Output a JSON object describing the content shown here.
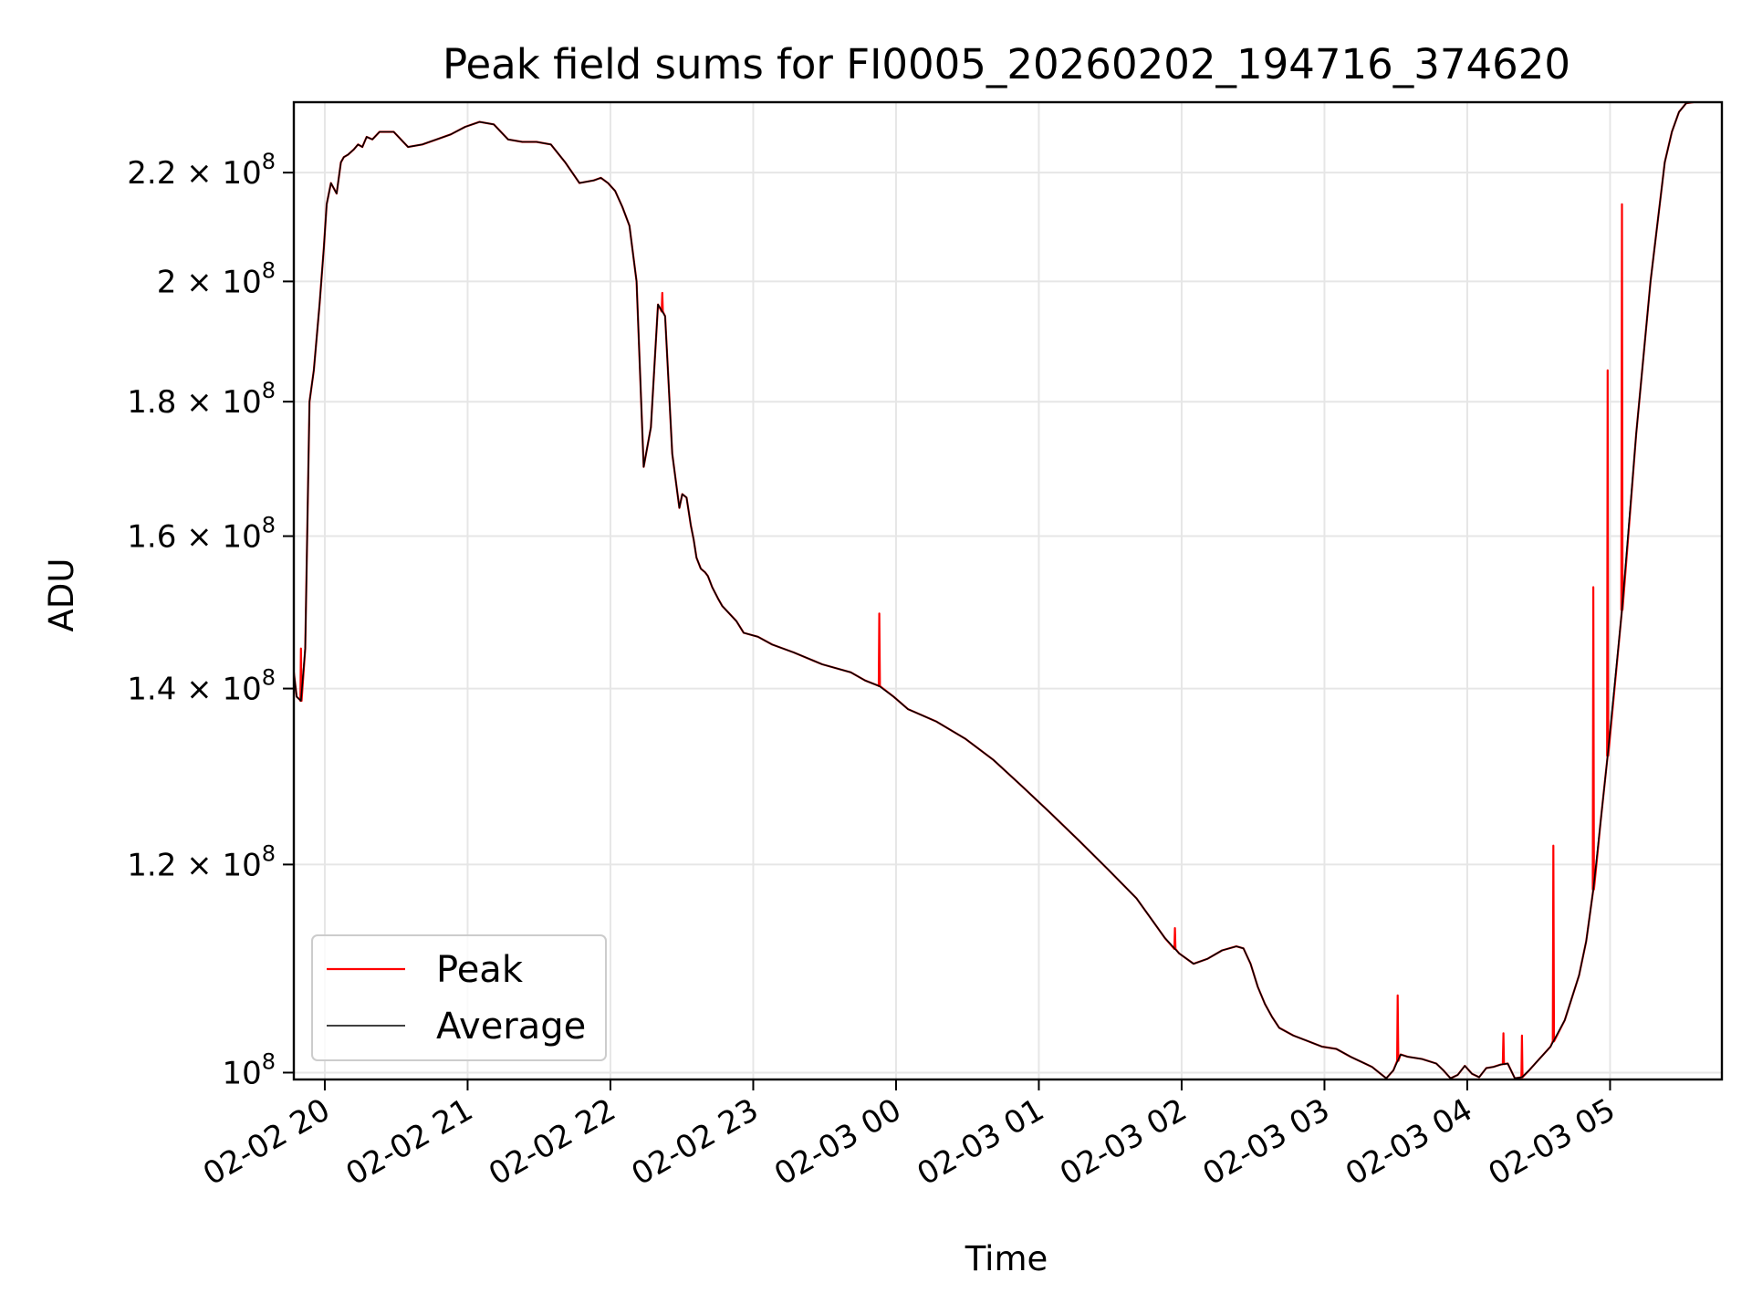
{
  "chart_data": {
    "type": "line",
    "title": "Peak field sums for FI0005_20260202_194716_374620",
    "xlabel": "Time",
    "ylabel": "ADU",
    "y_scale": "log",
    "ylim": [
      99400000,
      234000000
    ],
    "x_unit": "hours since 2026-02-02 19:47",
    "xlim": [
      0.0,
      10.0
    ],
    "grid": true,
    "legend_position": "lower-left",
    "x_ticks": [
      {
        "x": 0.217,
        "label": "02-02 20"
      },
      {
        "x": 1.217,
        "label": "02-02 21"
      },
      {
        "x": 2.217,
        "label": "02-02 22"
      },
      {
        "x": 3.217,
        "label": "02-02 23"
      },
      {
        "x": 4.217,
        "label": "02-03 00"
      },
      {
        "x": 5.217,
        "label": "02-03 01"
      },
      {
        "x": 6.217,
        "label": "02-03 02"
      },
      {
        "x": 7.217,
        "label": "02-03 03"
      },
      {
        "x": 8.217,
        "label": "02-03 04"
      },
      {
        "x": 9.217,
        "label": "02-03 05"
      }
    ],
    "y_ticks": [
      {
        "value": 100000000,
        "mantissa": "10",
        "exponent": "8"
      },
      {
        "value": 120000000,
        "mantissa": "1.2 × 10",
        "exponent": "8"
      },
      {
        "value": 140000000,
        "mantissa": "1.4 × 10",
        "exponent": "8"
      },
      {
        "value": 160000000,
        "mantissa": "1.6 × 10",
        "exponent": "8"
      },
      {
        "value": 180000000,
        "mantissa": "1.8 × 10",
        "exponent": "8"
      },
      {
        "value": 200000000,
        "mantissa": "2 × 10",
        "exponent": "8"
      },
      {
        "value": 220000000,
        "mantissa": "2.2 × 10",
        "exponent": "8"
      }
    ],
    "series": [
      {
        "name": "Average",
        "color": "#000000",
        "x": [
          0.0,
          0.02,
          0.05,
          0.08,
          0.11,
          0.14,
          0.18,
          0.21,
          0.23,
          0.26,
          0.3,
          0.33,
          0.35,
          0.38,
          0.42,
          0.45,
          0.48,
          0.51,
          0.55,
          0.6,
          0.7,
          0.8,
          0.9,
          1.0,
          1.1,
          1.2,
          1.3,
          1.4,
          1.5,
          1.6,
          1.7,
          1.8,
          1.9,
          2.0,
          2.1,
          2.15,
          2.2,
          2.25,
          2.3,
          2.35,
          2.4,
          2.45,
          2.5,
          2.55,
          2.6,
          2.65,
          2.7,
          2.72,
          2.75,
          2.78,
          2.8,
          2.82,
          2.85,
          2.88,
          2.9,
          2.93,
          2.97,
          3.0,
          3.05,
          3.1,
          3.15,
          3.25,
          3.35,
          3.5,
          3.7,
          3.9,
          4.0,
          4.1,
          4.2,
          4.3,
          4.5,
          4.7,
          4.9,
          5.1,
          5.3,
          5.5,
          5.7,
          5.9,
          6.0,
          6.1,
          6.2,
          6.3,
          6.4,
          6.5,
          6.6,
          6.65,
          6.7,
          6.75,
          6.8,
          6.85,
          6.9,
          7.0,
          7.1,
          7.2,
          7.3,
          7.4,
          7.5,
          7.55,
          7.6,
          7.65,
          7.7,
          7.75,
          7.8,
          7.9,
          8.0,
          8.05,
          8.1,
          8.15,
          8.2,
          8.25,
          8.3,
          8.35,
          8.4,
          8.45,
          8.5,
          8.55,
          8.6,
          8.65,
          8.7,
          8.8,
          8.9,
          9.0,
          9.05,
          9.1,
          9.15,
          9.2,
          9.3,
          9.4,
          9.5,
          9.6,
          9.65,
          9.7,
          9.75,
          9.8
        ],
        "y": [
          142000000,
          139000000,
          138500000,
          145000000,
          180000000,
          185000000,
          196000000,
          206000000,
          214000000,
          218000000,
          216000000,
          222000000,
          223000000,
          223500000,
          224500000,
          225500000,
          225000000,
          227000000,
          226500000,
          228000000,
          228000000,
          225000000,
          225500000,
          226500000,
          227500000,
          229000000,
          230000000,
          229500000,
          226500000,
          226000000,
          226000000,
          225500000,
          222000000,
          218000000,
          218500000,
          219000000,
          218000000,
          216500000,
          213500000,
          210000000,
          200000000,
          170000000,
          176000000,
          196000000,
          194000000,
          172000000,
          164000000,
          166000000,
          165500000,
          161500000,
          159500000,
          157000000,
          155500000,
          155000000,
          154500000,
          153000000,
          151500000,
          150500000,
          149500000,
          148500000,
          147000000,
          146500000,
          145500000,
          144500000,
          143000000,
          142000000,
          141000000,
          140300000,
          139000000,
          137500000,
          136000000,
          134000000,
          131500000,
          128500000,
          125500000,
          122500000,
          119500000,
          116500000,
          114500000,
          112500000,
          111000000,
          110000000,
          110500000,
          111300000,
          111700000,
          111500000,
          110000000,
          107800000,
          106200000,
          105000000,
          104000000,
          103300000,
          102800000,
          102300000,
          102100000,
          101400000,
          100800000,
          100500000,
          100000000,
          99500000,
          100200000,
          101600000,
          101400000,
          101200000,
          100800000,
          100200000,
          99500000,
          99800000,
          100600000,
          99900000,
          99600000,
          100400000,
          100500000,
          100700000,
          100800000,
          99500000,
          99600000,
          100200000,
          100900000,
          102300000,
          104700000,
          108900000,
          112200000,
          117400000,
          124500000,
          132000000,
          150000000,
          175000000,
          200000000,
          222000000,
          228000000,
          232000000,
          233800000,
          234000000
        ]
      },
      {
        "name": "Peak",
        "color": "#ff0000",
        "base": "Average",
        "spikes": [
          {
            "x": 0.05,
            "y": 145000000
          },
          {
            "x": 2.58,
            "y": 198000000
          },
          {
            "x": 4.1,
            "y": 149500000
          },
          {
            "x": 6.17,
            "y": 113500000
          },
          {
            "x": 7.73,
            "y": 107000000
          },
          {
            "x": 8.47,
            "y": 103500000
          },
          {
            "x": 8.6,
            "y": 103300000
          },
          {
            "x": 8.82,
            "y": 122000000
          },
          {
            "x": 9.1,
            "y": 153000000
          },
          {
            "x": 9.2,
            "y": 185000000
          },
          {
            "x": 9.3,
            "y": 214000000
          }
        ]
      }
    ]
  }
}
